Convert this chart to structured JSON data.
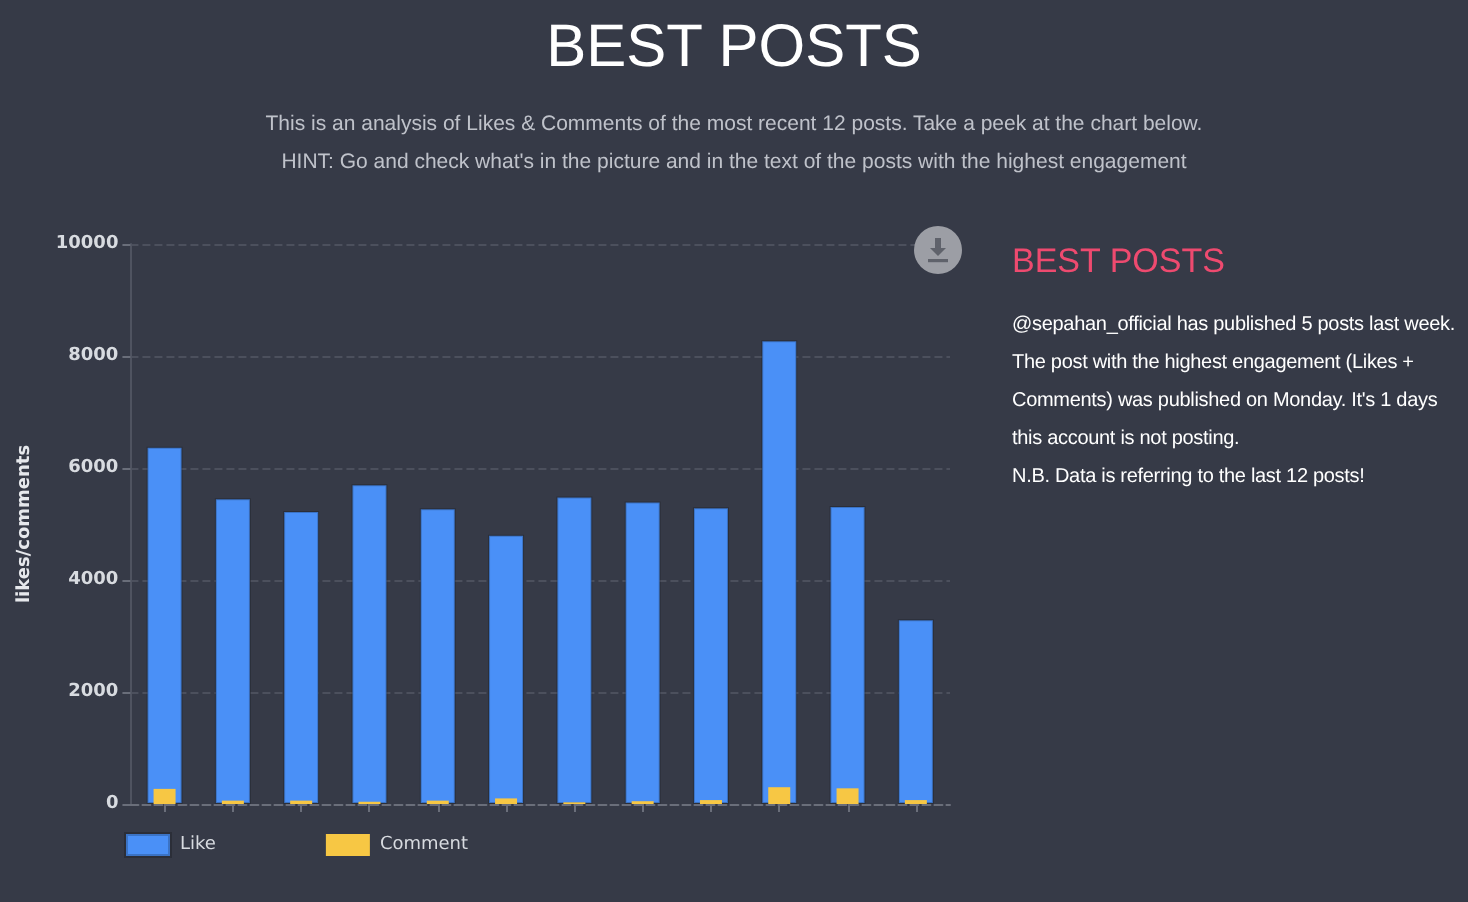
{
  "chart_data": [
    {
      "type": "bar",
      "title": "BEST POSTS",
      "subtitle": "This is an analysis of Likes & Comments of the most recent 12 posts. Take a peek at the chart below.",
      "annotations": [
        "HINT: Go and check what's in the picture and in the text of the posts with the highest engagement"
      ],
      "ylabel": "likes/comments",
      "categories": [
        null,
        null,
        null,
        null,
        null,
        null,
        null,
        null,
        null,
        null,
        null,
        null
      ],
      "series": [
        {
          "name": "Like",
          "color": "#4a90f7",
          "values": [
            6380,
            5460,
            5230,
            5710,
            5280,
            4810,
            5490,
            5400,
            5300,
            8280,
            5320,
            3300
          ]
        },
        {
          "name": "Comment",
          "color": "#f7c744",
          "values": [
            270,
            60,
            60,
            40,
            60,
            100,
            30,
            50,
            70,
            300,
            280,
            70
          ]
        }
      ],
      "ylim": [
        0,
        10000
      ],
      "yticks": [
        0,
        2000,
        4000,
        6000,
        8000,
        10000
      ],
      "grid": "y",
      "legend": "bottom left",
      "tick_labels": "y"
    },
    {
      "type": "other",
      "title": "BEST POSTS",
      "annotations": [
        "@sepahan_official has published 5 posts last week.",
        "The post with the highest engagement (Likes + Comments) was published on Monday. It's 1 days this account is not posting.",
        "N.B. Data is referring to the last 12 posts!"
      ]
    }
  ]
}
